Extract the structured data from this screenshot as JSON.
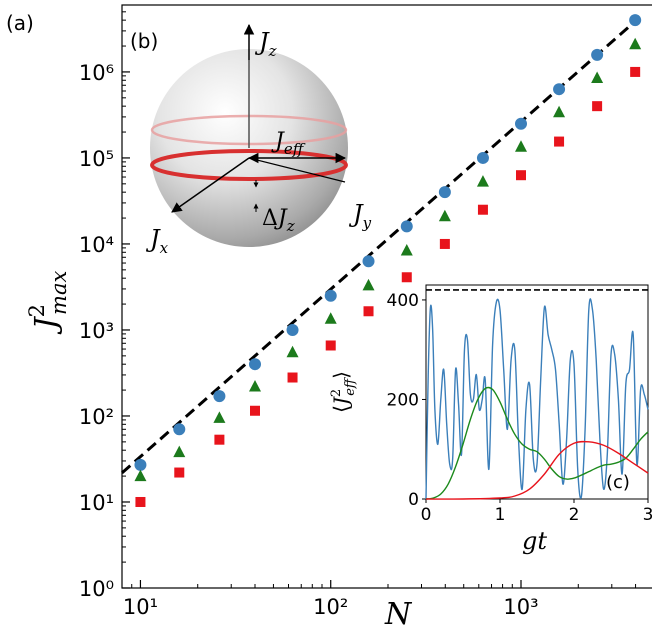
{
  "panel_labels": {
    "a": "(a)",
    "b": "(b)",
    "c": "(c)"
  },
  "chart_data": [
    {
      "type": "scatter",
      "panel": "(a)",
      "xlabel": "N",
      "ylabel": "J²max",
      "xscale": "log",
      "yscale": "log",
      "xlim": [
        8,
        5000
      ],
      "ylim": [
        1,
        6000000
      ],
      "xticks": [
        10,
        100,
        1000
      ],
      "xtick_labels": [
        "10¹",
        "10²",
        "10³"
      ],
      "yticks": [
        1,
        10,
        100,
        1000,
        10000,
        100000,
        1000000
      ],
      "ytick_labels": [
        "10⁰",
        "10¹",
        "10²",
        "10³",
        "10⁴",
        "10⁵",
        "10⁶"
      ],
      "grid": false,
      "x": [
        10,
        16,
        26,
        40,
        63,
        100,
        158,
        251,
        398,
        631,
        1000,
        1585,
        2512,
        3981
      ],
      "series": [
        {
          "marker": "circle",
          "color": "#3b7fba",
          "values": [
            27,
            70,
            170,
            400,
            1000,
            2500,
            6300,
            16000,
            40000,
            100000,
            250000,
            630000,
            1580000,
            4000000
          ]
        },
        {
          "marker": "triangle",
          "color": "#1c7a1c",
          "values": [
            20,
            38,
            95,
            220,
            550,
            1350,
            3300,
            8400,
            21000,
            53000,
            135000,
            340000,
            850000,
            2100000
          ]
        },
        {
          "marker": "square",
          "color": "#e8141c",
          "values": [
            10,
            22,
            53,
            115,
            280,
            660,
            1650,
            4100,
            10000,
            25000,
            63000,
            155000,
            400000,
            1000000
          ]
        }
      ],
      "fit_line": {
        "style": "dashed",
        "color": "#000000",
        "x_range": [
          8,
          4100
        ],
        "y_range": [
          21.8,
          4100000
        ]
      }
    },
    {
      "type": "line",
      "panel": "(c)",
      "xlabel": "gt",
      "ylabel": "⟨J²eff⟩",
      "xlim": [
        0,
        3
      ],
      "ylim": [
        0,
        430
      ],
      "xticks": [
        0,
        1,
        2,
        3
      ],
      "yticks": [
        0,
        200,
        400
      ],
      "reference_line": {
        "y": 420,
        "style": "dashed",
        "color": "#000000"
      },
      "series": [
        {
          "color": "#3b7fba",
          "x": [
            0,
            0.03,
            0.06,
            0.09,
            0.12,
            0.16,
            0.2,
            0.24,
            0.28,
            0.32,
            0.36,
            0.4,
            0.44,
            0.48,
            0.52,
            0.56,
            0.6,
            0.64,
            0.68,
            0.72,
            0.76,
            0.8,
            0.85,
            0.9,
            0.95,
            1.0,
            1.05,
            1.1,
            1.15,
            1.2,
            1.25,
            1.3,
            1.35,
            1.4,
            1.45,
            1.5,
            1.55,
            1.6,
            1.65,
            1.7,
            1.75,
            1.8,
            1.85,
            1.9,
            1.95,
            2.0,
            2.05,
            2.1,
            2.15,
            2.2,
            2.25,
            2.3,
            2.35,
            2.4,
            2.45,
            2.5,
            2.55,
            2.6,
            2.65,
            2.7,
            2.75,
            2.8,
            2.85,
            2.9,
            2.95,
            3.0
          ],
          "values": [
            0,
            250,
            385,
            340,
            180,
            110,
            200,
            260,
            150,
            70,
            80,
            260,
            190,
            90,
            300,
            320,
            210,
            200,
            250,
            180,
            200,
            240,
            60,
            310,
            395,
            380,
            260,
            140,
            280,
            300,
            120,
            20,
            180,
            230,
            80,
            70,
            240,
            385,
            330,
            300,
            260,
            150,
            30,
            120,
            280,
            270,
            60,
            5,
            140,
            380,
            380,
            280,
            120,
            20,
            90,
            290,
            290,
            200,
            50,
            230,
            260,
            330,
            70,
            220,
            210,
            180
          ]
        },
        {
          "color": "#1c8a1c",
          "x": [
            0,
            0.1,
            0.2,
            0.3,
            0.4,
            0.5,
            0.6,
            0.7,
            0.8,
            0.9,
            1.0,
            1.1,
            1.2,
            1.3,
            1.4,
            1.5,
            1.6,
            1.7,
            1.8,
            1.9,
            2.0,
            2.1,
            2.2,
            2.3,
            2.4,
            2.5,
            2.6,
            2.7,
            2.8,
            2.9,
            3.0
          ],
          "values": [
            0,
            2,
            10,
            30,
            65,
            110,
            160,
            200,
            222,
            220,
            195,
            160,
            130,
            110,
            100,
            95,
            80,
            60,
            45,
            40,
            42,
            48,
            55,
            62,
            68,
            70,
            74,
            82,
            100,
            120,
            135
          ]
        },
        {
          "color": "#e8141c",
          "x": [
            0,
            0.5,
            1.0,
            1.2,
            1.4,
            1.6,
            1.8,
            2.0,
            2.2,
            2.4,
            2.6,
            2.8,
            3.0
          ],
          "values": [
            0,
            0,
            2,
            6,
            20,
            50,
            90,
            112,
            115,
            108,
            92,
            72,
            52
          ]
        }
      ]
    },
    {
      "type": "diagram",
      "panel": "(b)",
      "labels": {
        "jz": "Jz",
        "jy": "Jy",
        "jx": "Jx",
        "jeff": "Jeff",
        "delta_jz": "ΔJz"
      }
    }
  ]
}
